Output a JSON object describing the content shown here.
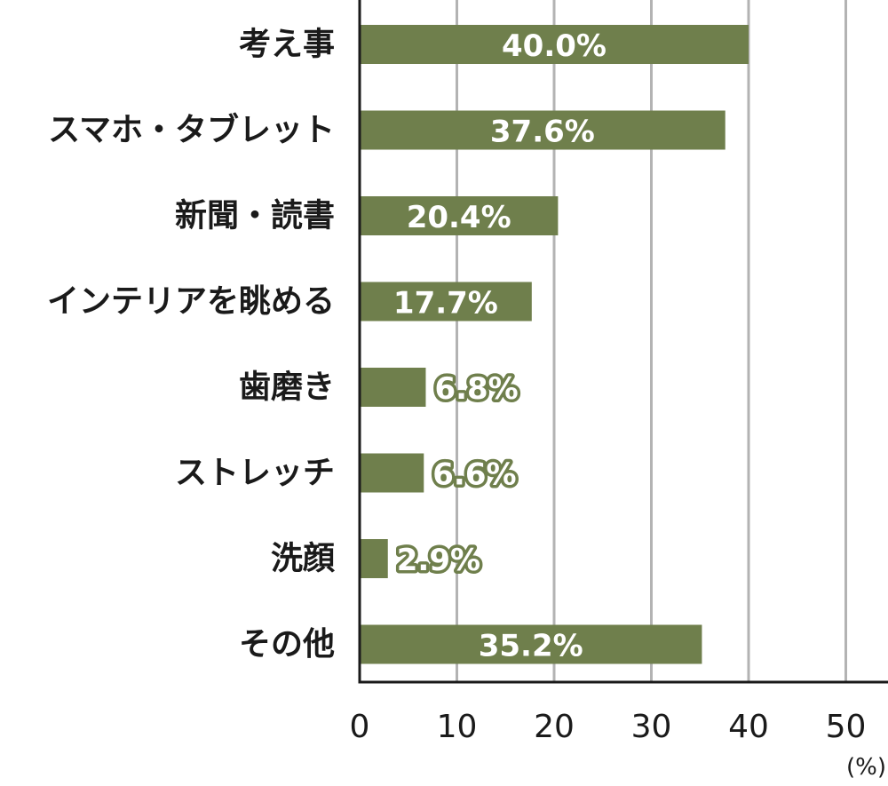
{
  "chart_data": {
    "type": "bar",
    "orientation": "horizontal",
    "categories": [
      "考え事",
      "スマホ・タブレット",
      "新聞・読書",
      "インテリアを眺める",
      "歯磨き",
      "ストレッチ",
      "洗顔",
      "その他"
    ],
    "values": [
      40.0,
      37.6,
      20.4,
      17.7,
      6.8,
      6.6,
      2.9,
      35.2
    ],
    "value_labels": [
      "40.0%",
      "37.6%",
      "20.4%",
      "17.7%",
      "6.8%",
      "6.6%",
      "2.9%",
      "35.2%"
    ],
    "xlim": [
      0,
      50
    ],
    "xticks": [
      "0",
      "10",
      "20",
      "30",
      "40",
      "50"
    ],
    "unit_label": "(%)",
    "grid": true,
    "bar_color": "#6f7f4c",
    "grid_color": "#b3b3b3",
    "axis_color": "#1a1a1a"
  }
}
